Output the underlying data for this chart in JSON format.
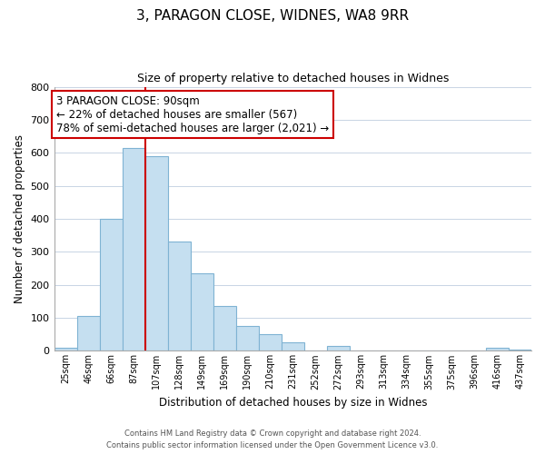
{
  "title": "3, PARAGON CLOSE, WIDNES, WA8 9RR",
  "subtitle": "Size of property relative to detached houses in Widnes",
  "xlabel": "Distribution of detached houses by size in Widnes",
  "ylabel": "Number of detached properties",
  "bar_labels": [
    "25sqm",
    "46sqm",
    "66sqm",
    "87sqm",
    "107sqm",
    "128sqm",
    "149sqm",
    "169sqm",
    "190sqm",
    "210sqm",
    "231sqm",
    "252sqm",
    "272sqm",
    "293sqm",
    "313sqm",
    "334sqm",
    "355sqm",
    "375sqm",
    "396sqm",
    "416sqm",
    "437sqm"
  ],
  "bar_values": [
    10,
    105,
    400,
    615,
    590,
    330,
    235,
    135,
    75,
    50,
    25,
    0,
    15,
    0,
    0,
    0,
    0,
    0,
    0,
    8,
    5
  ],
  "bar_color": "#c5dff0",
  "bar_edge_color": "#7fb3d3",
  "vline_x_index": 3,
  "vline_color": "#cc0000",
  "annotation_text": "3 PARAGON CLOSE: 90sqm\n← 22% of detached houses are smaller (567)\n78% of semi-detached houses are larger (2,021) →",
  "annotation_box_color": "#ffffff",
  "annotation_box_edge": "#cc0000",
  "ylim": [
    0,
    800
  ],
  "yticks": [
    0,
    100,
    200,
    300,
    400,
    500,
    600,
    700,
    800
  ],
  "footer_line1": "Contains HM Land Registry data © Crown copyright and database right 2024.",
  "footer_line2": "Contains public sector information licensed under the Open Government Licence v3.0.",
  "background_color": "#ffffff",
  "grid_color": "#c8d4e4",
  "ann_fontsize": 8.5,
  "title_fontsize": 11,
  "subtitle_fontsize": 9
}
